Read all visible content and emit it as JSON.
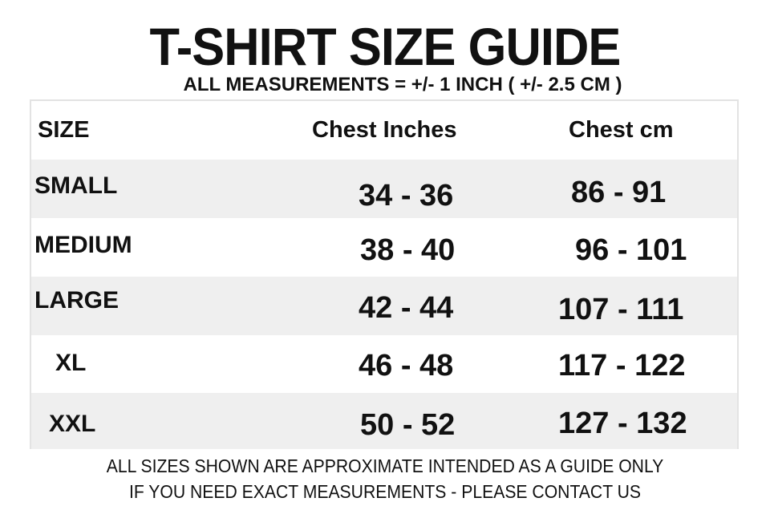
{
  "title": "T-SHIRT SIZE GUIDE",
  "subtitle": "ALL MEASUREMENTS = +/- 1 INCH ( +/- 2.5 CM )",
  "table": {
    "headers": [
      "SIZE",
      "Chest Inches",
      "Chest cm"
    ],
    "rows": [
      {
        "size": "SMALL",
        "inches": "34 - 36",
        "cm": "86 - 91"
      },
      {
        "size": "MEDIUM",
        "inches": "38 - 40",
        "cm": "96 - 101"
      },
      {
        "size": "LARGE",
        "inches": "42 - 44",
        "cm": "107 - 111"
      },
      {
        "size": "XL",
        "inches": "46 - 48",
        "cm": "117 - 122"
      },
      {
        "size": "XXL",
        "inches": "50 - 52",
        "cm": "127 - 132"
      }
    ]
  },
  "footer": {
    "line1": "ALL SIZES SHOWN ARE APPROXIMATE INTENDED AS A GUIDE ONLY",
    "line2": "IF  YOU NEED EXACT MEASUREMENTS - PLEASE CONTACT US"
  },
  "colors": {
    "stripe": "#efefef",
    "text": "#111111",
    "border": "#e3e3e3"
  }
}
